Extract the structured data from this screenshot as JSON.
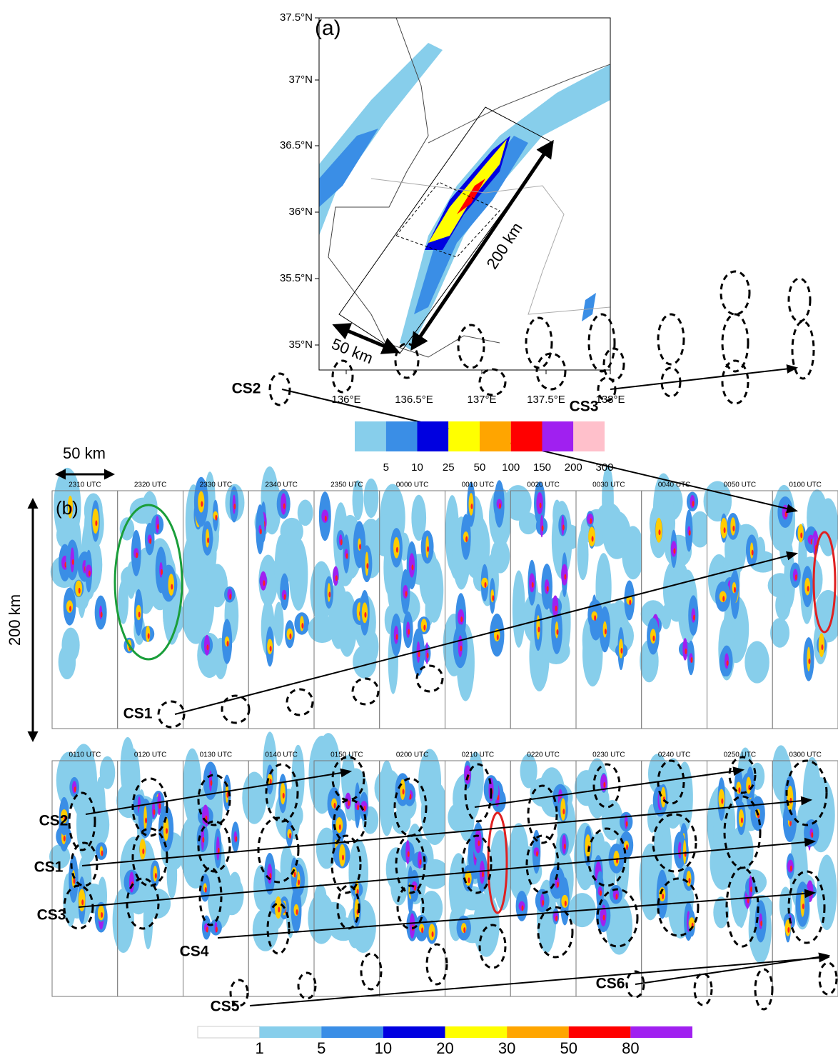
{
  "panel_a": {
    "label": "(a)",
    "lat_labels": [
      "37.5°N",
      "37°N",
      "36.5°N",
      "36°N",
      "35.5°N",
      "35°N"
    ],
    "lon_labels": [
      "136°E",
      "136.5°E",
      "137°E",
      "137.5°E",
      "138°E"
    ],
    "distance_long": "200 km",
    "distance_short": "50 km",
    "colorbar_labels": [
      "5",
      "10",
      "25",
      "50",
      "100",
      "150",
      "200",
      "300"
    ]
  },
  "panel_b": {
    "label": "(b)",
    "scale_horizontal": "50 km",
    "scale_vertical": "200 km",
    "times_row1": [
      "2310 UTC",
      "2320 UTC",
      "2330 UTC",
      "2340 UTC",
      "2350 UTC",
      "0000 UTC",
      "0010 UTC",
      "0020 UTC",
      "0030 UTC",
      "0040 UTC",
      "0050 UTC",
      "0100 UTC"
    ],
    "times_row2": [
      "0110 UTC",
      "0120 UTC",
      "0130 UTC",
      "0140 UTC",
      "0150 UTC",
      "0200 UTC",
      "0210 UTC",
      "0220 UTC",
      "0230 UTC",
      "0240 UTC",
      "0250 UTC",
      "0300 UTC"
    ],
    "cells_row1": [
      "CS1",
      "CS2",
      "CS3"
    ],
    "cells_row2": [
      "CS2",
      "CS1",
      "CS3",
      "CS4",
      "CS5",
      "CS6"
    ],
    "colorbar_labels": [
      "1",
      "5",
      "10",
      "20",
      "30",
      "50",
      "80"
    ]
  }
}
